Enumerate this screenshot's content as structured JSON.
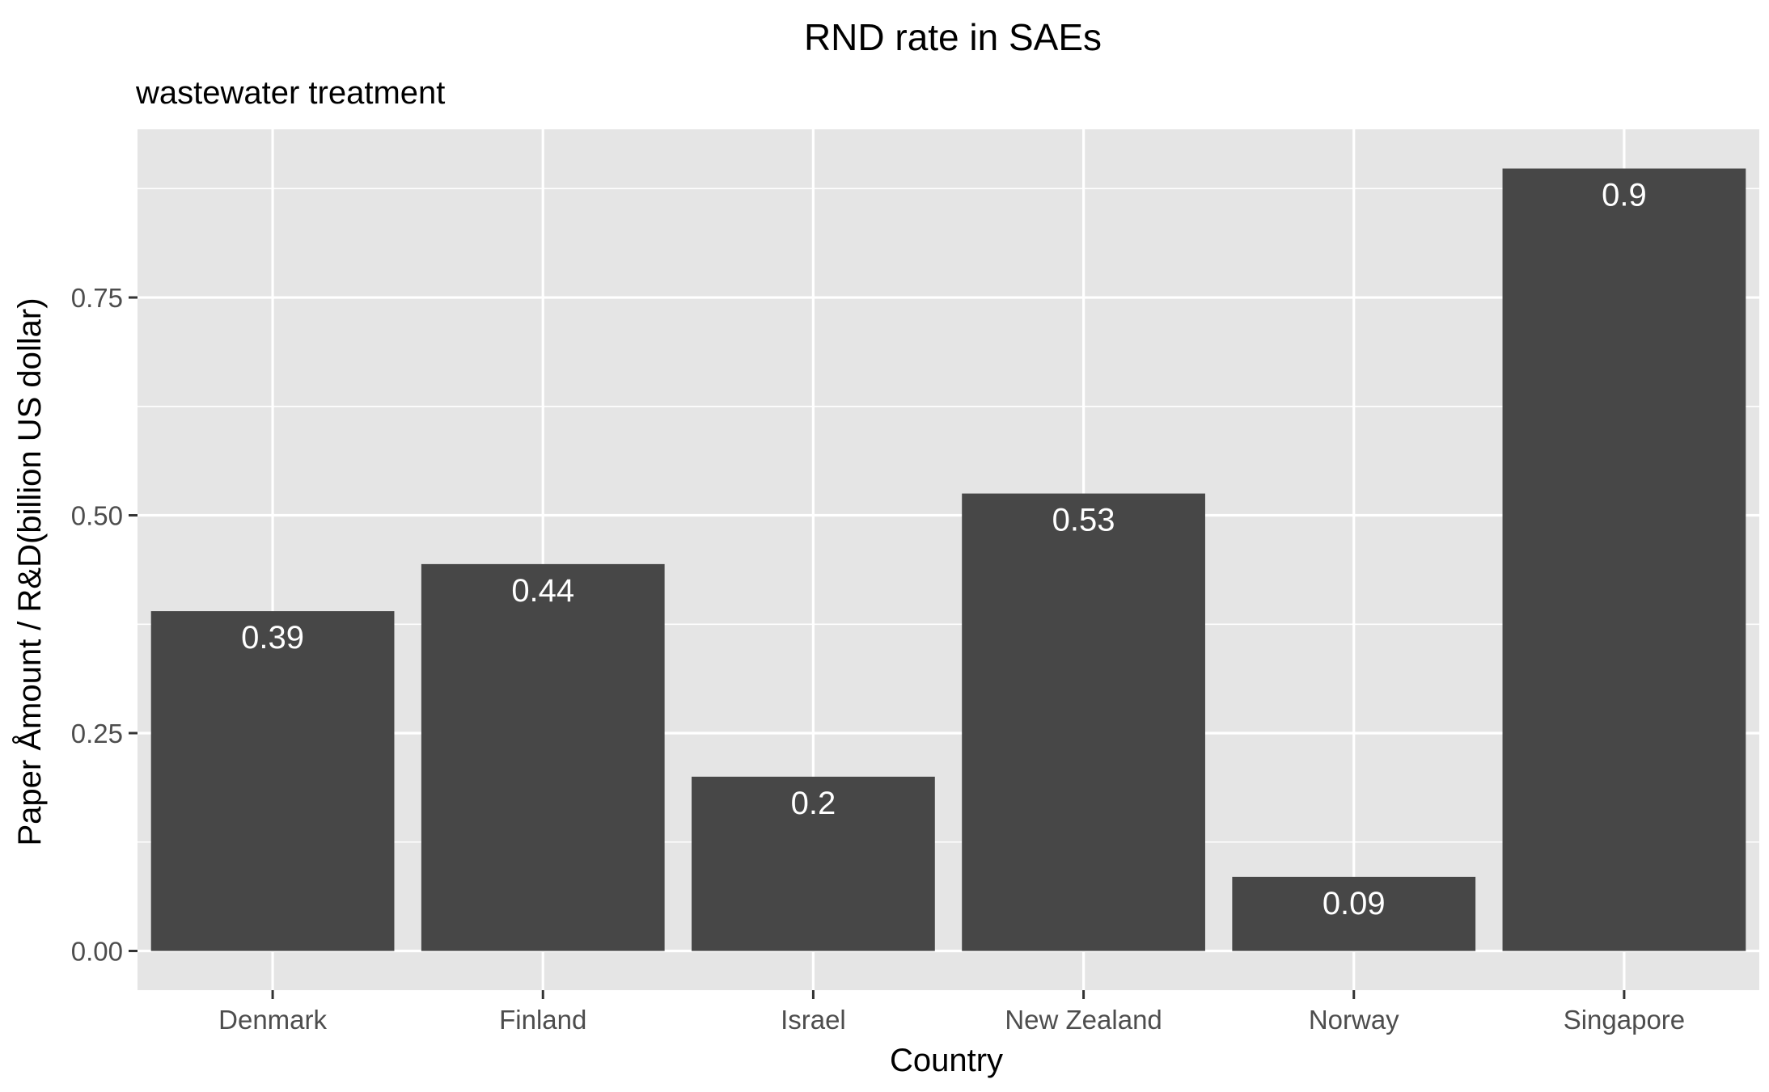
{
  "chart_data": {
    "type": "bar",
    "title": "RND rate in SAEs",
    "subtitle": "wastewater treatment",
    "xlabel": "Country",
    "ylabel": "Paper Åmount / R&D(billion US dollar)",
    "categories": [
      "Denmark",
      "Finland",
      "Israel",
      "New Zealand",
      "Norway",
      "Singapore"
    ],
    "values": [
      0.39,
      0.444,
      0.2,
      0.525,
      0.085,
      0.898
    ],
    "labels": [
      "0.39",
      "0.44",
      "0.2",
      "0.53",
      "0.09",
      "0.9"
    ],
    "ylim": [
      -0.045,
      0.943
    ],
    "yticks": [
      0.0,
      0.25,
      0.5,
      0.75
    ],
    "ytick_labels": [
      "0.00",
      "0.25",
      "0.50",
      "0.75"
    ],
    "grid": true,
    "bar_color": "#474747",
    "panel_color": "#e5e5e5"
  }
}
